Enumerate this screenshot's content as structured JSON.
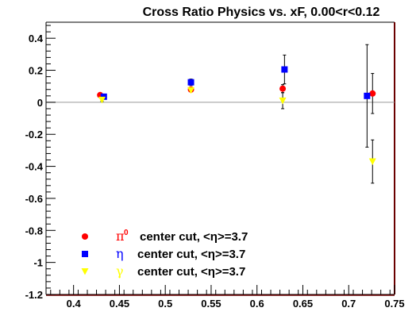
{
  "chart_data": {
    "type": "scatter",
    "title": "Cross Ratio Physics vs. xF, 0.00<r<0.12",
    "xlabel": "",
    "ylabel": "",
    "xlim": [
      0.37,
      0.75
    ],
    "ylim": [
      -1.2,
      0.5
    ],
    "x_ticks": [
      0.4,
      0.45,
      0.5,
      0.55,
      0.6,
      0.65,
      0.7,
      0.75
    ],
    "x_tick_labels": [
      "0.4",
      "0.45",
      "0.5",
      "0.55",
      "0.6",
      "0.65",
      "0.7",
      "0.75"
    ],
    "y_ticks": [
      0.4,
      0.2,
      0,
      -0.2,
      -0.4,
      -0.6,
      -0.8,
      -1,
      -1.2
    ],
    "y_tick_labels": [
      "0.4",
      "0.2",
      "0",
      "-0.2",
      "-0.4",
      "-0.6",
      "-0.8",
      "-1",
      "-1.2"
    ],
    "reference_line_y": 0,
    "grid": false,
    "legend_position": "bottom-left",
    "series": [
      {
        "name": "π0 center cut, <η>=3.7",
        "symbol_text": "π",
        "symbol_sup": "0",
        "label_text": "center cut, <η>=3.7",
        "color": "#ff0000",
        "marker": "circle",
        "points": [
          {
            "x": 0.429,
            "y": 0.045,
            "err": 0.01
          },
          {
            "x": 0.528,
            "y": 0.08,
            "err": 0.01
          },
          {
            "x": 0.628,
            "y": 0.085,
            "err": 0.025
          },
          {
            "x": 0.726,
            "y": 0.055,
            "err": 0.125
          }
        ]
      },
      {
        "name": "η center cut, <η>=3.7",
        "symbol_text": "η",
        "symbol_sup": "",
        "label_text": "center cut, <η>=3.7",
        "color": "#0000ff",
        "marker": "square",
        "points": [
          {
            "x": 0.433,
            "y": 0.035,
            "err": 0.01
          },
          {
            "x": 0.528,
            "y": 0.125,
            "err": 0.02
          },
          {
            "x": 0.63,
            "y": 0.205,
            "err": 0.09
          },
          {
            "x": 0.72,
            "y": 0.04,
            "err": 0.32
          }
        ]
      },
      {
        "name": "γ center cut, <η>=3.7",
        "symbol_text": "γ",
        "symbol_sup": "",
        "label_text": "center cut, <η>=3.7",
        "color": "#ffff00",
        "marker": "triangle-down",
        "points": [
          {
            "x": 0.431,
            "y": 0.015,
            "err": 0.01
          },
          {
            "x": 0.528,
            "y": 0.075,
            "err": 0.01
          },
          {
            "x": 0.628,
            "y": 0.01,
            "err": 0.05
          },
          {
            "x": 0.726,
            "y": -0.37,
            "err": 0.135
          }
        ]
      }
    ]
  }
}
